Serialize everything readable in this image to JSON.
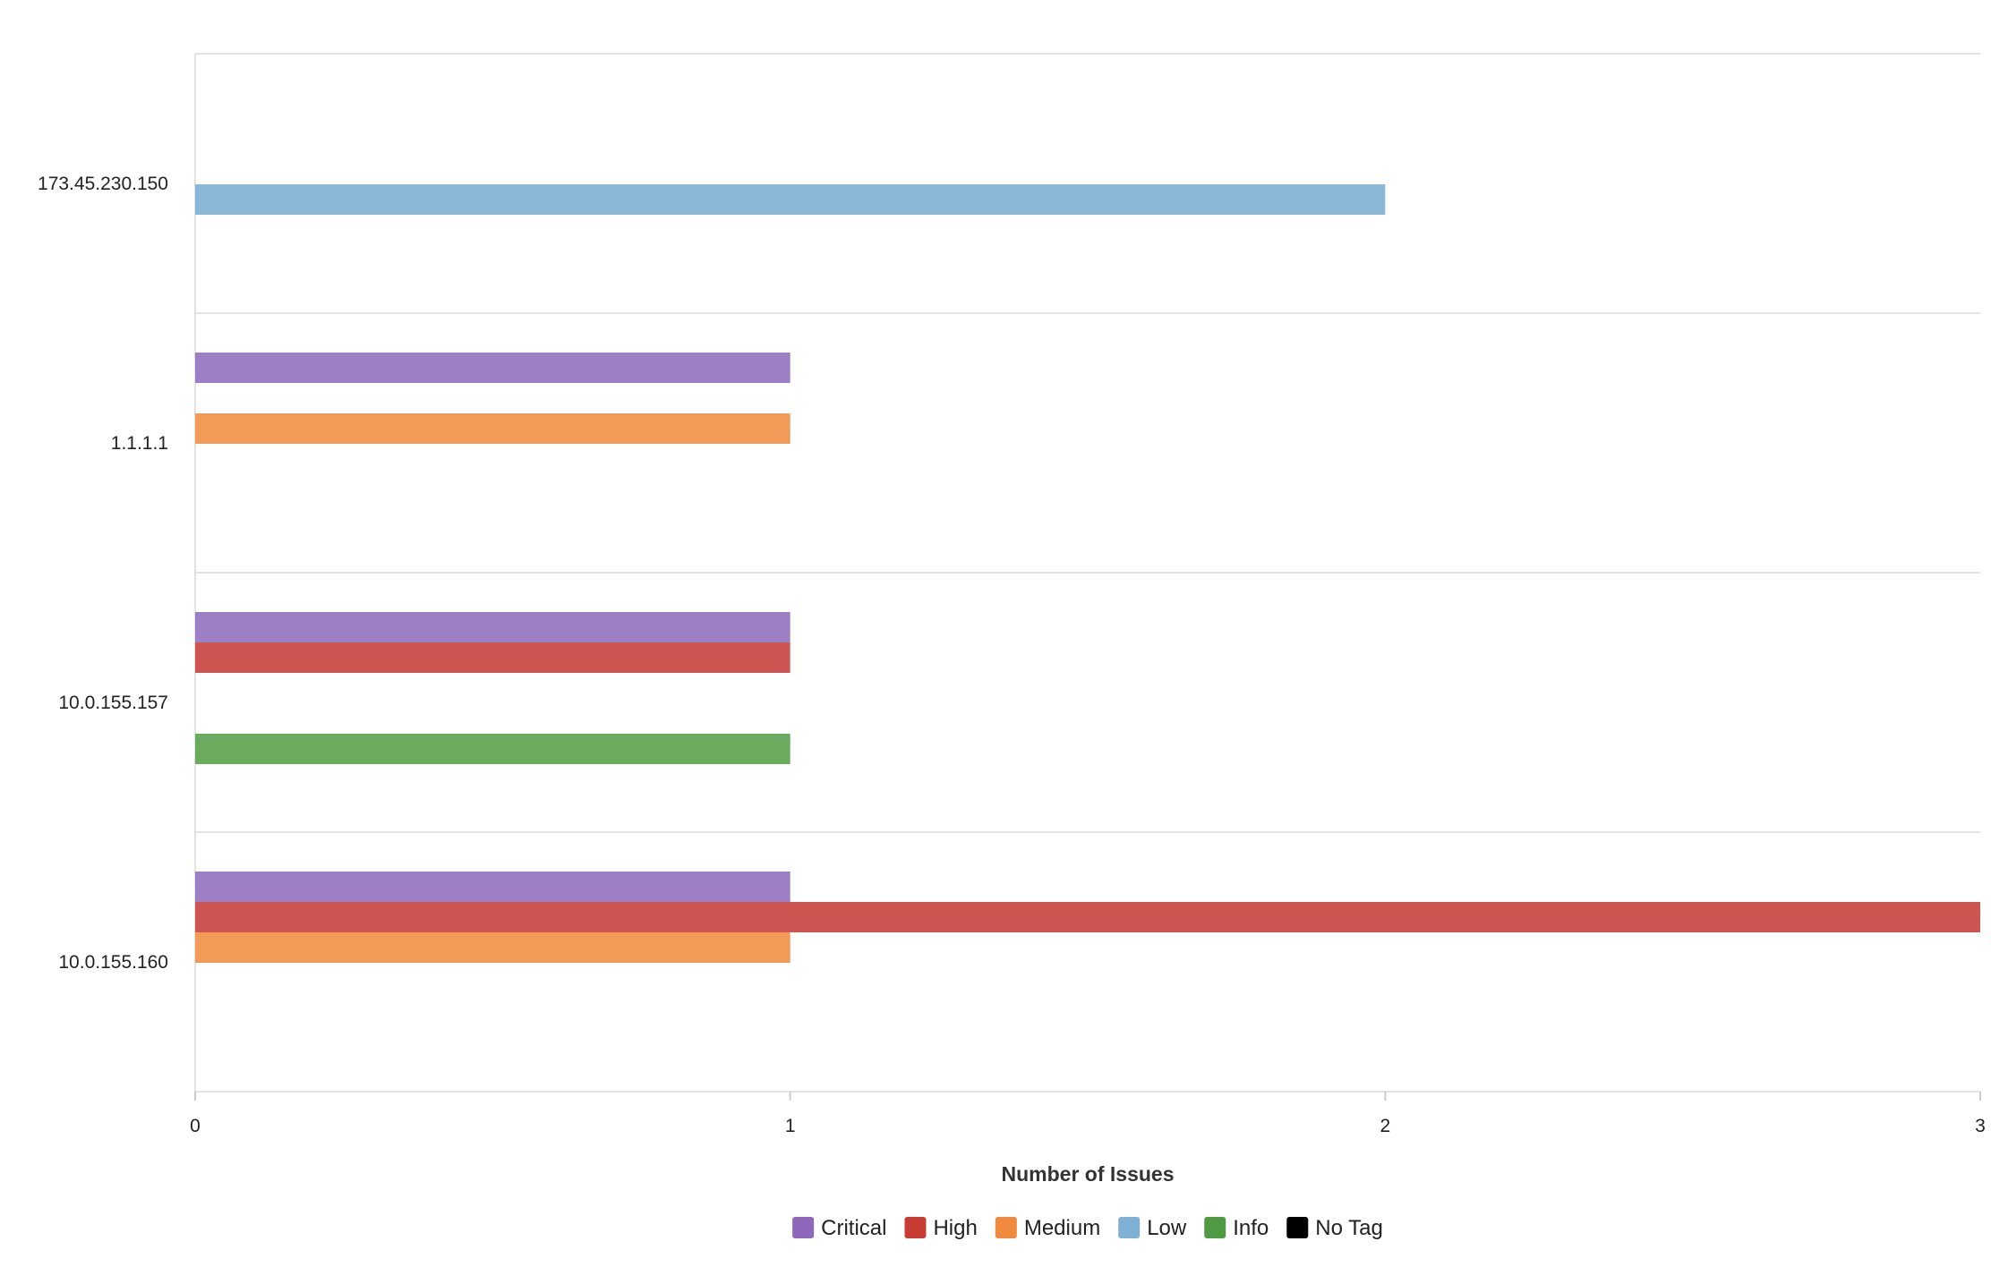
{
  "chart_data": {
    "type": "bar",
    "orientation": "horizontal",
    "title": "",
    "xlabel": "Number of Issues",
    "ylabel": "",
    "xlim": [
      0,
      3
    ],
    "x_ticks": [
      "0",
      "1",
      "2",
      "3"
    ],
    "grid": true,
    "legend_placement": "bottom-center",
    "categories": [
      "173.45.230.150",
      "1.1.1.1",
      "10.0.155.157",
      "10.0.155.160"
    ],
    "series": [
      {
        "name": "Critical",
        "color": "#9d7fc5",
        "values": [
          0,
          1,
          1,
          1
        ]
      },
      {
        "name": "High",
        "color": "#cd5652",
        "values": [
          0,
          0,
          1,
          3
        ]
      },
      {
        "name": "Medium",
        "color": "#f29a57",
        "values": [
          0,
          1,
          0,
          1
        ]
      },
      {
        "name": "Low",
        "color": "#8cb8d8",
        "values": [
          2,
          0,
          0,
          0
        ]
      },
      {
        "name": "Info",
        "color": "#6aab5e",
        "values": [
          0,
          0,
          1,
          0
        ]
      },
      {
        "name": "No Tag",
        "color": "#000000",
        "values": [
          0,
          0,
          0,
          0
        ]
      }
    ]
  },
  "legend": {
    "swatch_colors": [
      "#8f68bb",
      "#c93c36",
      "#ef8a3e",
      "#7fb0d6",
      "#4f9a42",
      "#000000"
    ]
  }
}
